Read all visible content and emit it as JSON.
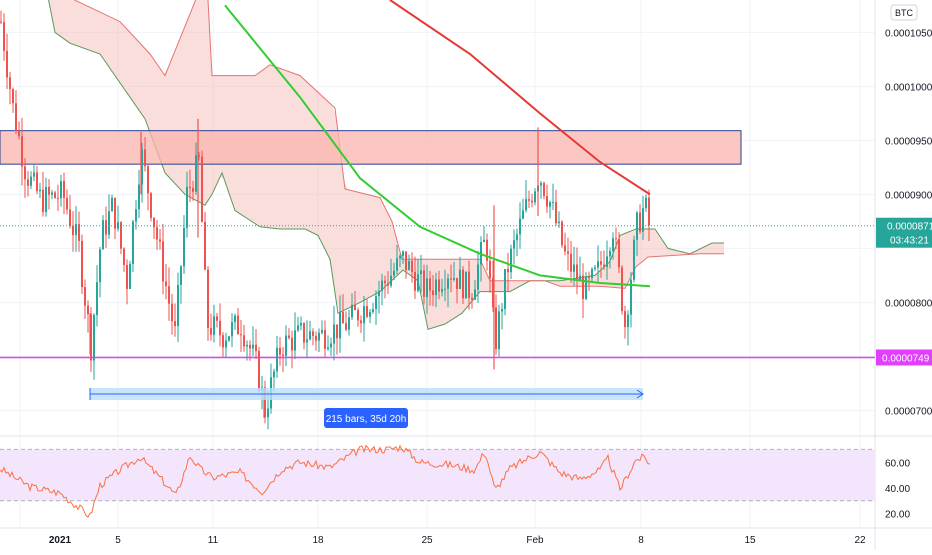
{
  "colors": {
    "background": "#ffffff",
    "grid": "#f0f3fa",
    "up": "#26a69a",
    "down": "#ef5350",
    "kumo_upper": "#f3b6b0",
    "cloud_line_green": "#5b9a5b",
    "cloud_line_red": "#e57373",
    "ma_green": "#33cc33",
    "ma_red": "#e53935",
    "zone_fill": "#fbb4ae",
    "zone_border": "#2a3f8f",
    "support": "#e040fb",
    "rsi_line": "#ff6e40",
    "rsi_band": "#f3e5fc",
    "measure": "#bbdefb",
    "measure_line": "#2962ff",
    "label_blue": "#2962ff"
  },
  "price_axis": {
    "currency_badge": "BTC",
    "ticks": [
      "0.0001050",
      "0.0001000",
      "0.0000950",
      "0.0000900",
      "0.0000800",
      "0.0000700"
    ],
    "tick_values": [
      0.000105,
      0.0001,
      9.5e-05,
      9e-05,
      8e-05,
      7e-05
    ],
    "last_price": "0.0000871",
    "last_price_value": 8.71e-05,
    "countdown": "03:43:21",
    "support_label": "0.0000749",
    "support_value": 7.49e-05
  },
  "rsi_axis": {
    "ticks": [
      "60.00",
      "40.00",
      "20.00"
    ],
    "tick_values": [
      60,
      40,
      20
    ],
    "band": [
      30,
      70
    ]
  },
  "time_axis": {
    "labels": [
      "2021",
      "5",
      "11",
      "18",
      "25",
      "Feb",
      "8",
      "15",
      "22"
    ]
  },
  "measurement": {
    "label": "215 bars, 35d 20h"
  },
  "resistance_zone": {
    "top": 9.59e-05,
    "bottom": 9.28e-05
  },
  "chart_data": {
    "type": "candlestick",
    "xlabel": "",
    "ylabel": "",
    "ylim": [
      6.8e-05,
      0.000108
    ],
    "series": [
      {
        "name": "",
        "type": "close-price",
        "points": [
          [
            0,
            0.000106
          ],
          [
            12,
            9.8e-05
          ],
          [
            25,
            9.2e-05
          ],
          [
            40,
            8.95e-05
          ],
          [
            62,
            9e-05
          ],
          [
            78,
            8.5e-05
          ],
          [
            90,
            7.6e-05
          ],
          [
            100,
            8.6e-05
          ],
          [
            112,
            8.9e-05
          ],
          [
            126,
            8.2e-05
          ],
          [
            140,
            9.4e-05
          ],
          [
            152,
            8.8e-05
          ],
          [
            164,
            8.2e-05
          ],
          [
            174,
            7.7e-05
          ],
          [
            186,
            9e-05
          ],
          [
            198,
            9.3e-05
          ],
          [
            206,
            7.8e-05
          ],
          [
            222,
            7.7e-05
          ],
          [
            240,
            7.8e-05
          ],
          [
            256,
            7.4e-05
          ],
          [
            264,
            7e-05
          ],
          [
            280,
            7.6e-05
          ],
          [
            300,
            7.7e-05
          ],
          [
            322,
            7.7e-05
          ],
          [
            345,
            7.8e-05
          ],
          [
            368,
            8e-05
          ],
          [
            385,
            8.2e-05
          ],
          [
            402,
            8.4e-05
          ],
          [
            425,
            8.1e-05
          ],
          [
            448,
            8.3e-05
          ],
          [
            470,
            8.1e-05
          ],
          [
            485,
            8.6e-05
          ],
          [
            494,
            7.6e-05
          ],
          [
            506,
            8.3e-05
          ],
          [
            522,
            8.8e-05
          ],
          [
            538,
            9.2e-05
          ],
          [
            550,
            8.9e-05
          ],
          [
            565,
            8.4e-05
          ],
          [
            585,
            8.1e-05
          ],
          [
            598,
            8.3e-05
          ],
          [
            612,
            8.7e-05
          ],
          [
            624,
            7.8e-05
          ],
          [
            636,
            8.7e-05
          ],
          [
            644,
            8.9e-05
          ],
          [
            648,
            8.71e-05
          ]
        ]
      },
      {
        "name": "",
        "type": "moving-average",
        "color": "#33cc33",
        "points": [
          [
            225,
            0.0001075
          ],
          [
            300,
            9.9e-05
          ],
          [
            360,
            9.15e-05
          ],
          [
            420,
            8.7e-05
          ],
          [
            480,
            8.45e-05
          ],
          [
            540,
            8.25e-05
          ],
          [
            600,
            8.18e-05
          ],
          [
            650,
            8.15e-05
          ]
        ]
      },
      {
        "name": "",
        "type": "moving-average",
        "color": "#e53935",
        "points": [
          [
            390,
            0.000108
          ],
          [
            470,
            0.000103
          ],
          [
            540,
            9.75e-05
          ],
          [
            600,
            9.3e-05
          ],
          [
            650,
            9e-05
          ]
        ]
      },
      {
        "name": "",
        "type": "rsi",
        "values": [
          [
            0,
            55
          ],
          [
            30,
            41
          ],
          [
            60,
            36
          ],
          [
            80,
            24
          ],
          [
            90,
            18
          ],
          [
            100,
            42
          ],
          [
            120,
            54
          ],
          [
            140,
            64
          ],
          [
            160,
            48
          ],
          [
            176,
            34
          ],
          [
            190,
            65
          ],
          [
            200,
            55
          ],
          [
            212,
            48
          ],
          [
            240,
            52
          ],
          [
            262,
            37
          ],
          [
            282,
            55
          ],
          [
            300,
            60
          ],
          [
            330,
            56
          ],
          [
            360,
            70
          ],
          [
            385,
            70
          ],
          [
            402,
            72
          ],
          [
            420,
            60
          ],
          [
            450,
            58
          ],
          [
            475,
            54
          ],
          [
            485,
            69
          ],
          [
            495,
            38
          ],
          [
            510,
            55
          ],
          [
            525,
            62
          ],
          [
            540,
            68
          ],
          [
            560,
            52
          ],
          [
            580,
            47
          ],
          [
            600,
            54
          ],
          [
            608,
            63
          ],
          [
            620,
            39
          ],
          [
            636,
            62
          ],
          [
            644,
            64
          ],
          [
            650,
            59
          ]
        ]
      }
    ],
    "horizontal_levels": [
      7.49e-05
    ],
    "zone": [
      9.28e-05,
      9.59e-05
    ]
  }
}
